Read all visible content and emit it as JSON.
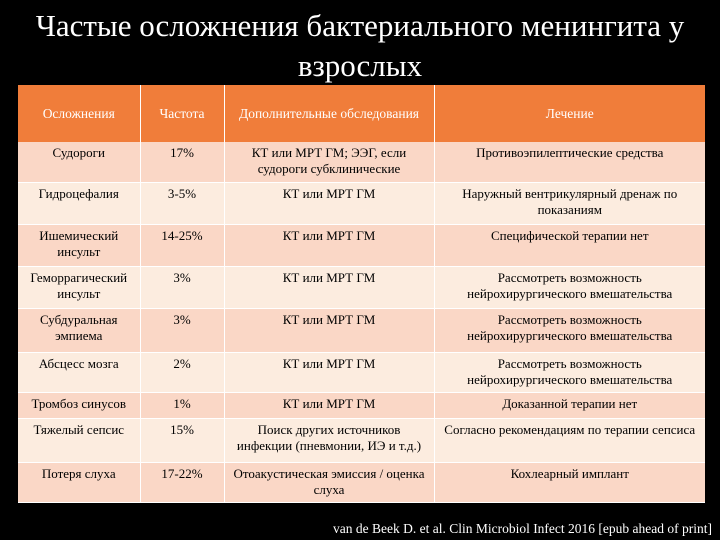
{
  "title": "Частые осложнения бактериального менингита у взрослых",
  "table": {
    "headers": [
      "Осложнения",
      "Частота",
      "Дополнительные обследования",
      "Лечение"
    ],
    "rows": [
      [
        "Судороги",
        "17%",
        "КТ или МРТ ГМ; ЭЭГ, если судороги субклинические",
        "Противоэпилептические средства"
      ],
      [
        "Гидроцефалия",
        "3-5%",
        "КТ или МРТ ГМ",
        "Наружный вентрикулярный дренаж по показаниям"
      ],
      [
        "Ишемический инсульт",
        "14-25%",
        "КТ или МРТ ГМ",
        "Специфической терапии нет"
      ],
      [
        "Геморрагический инсульт",
        "3%",
        "КТ или МРТ ГМ",
        "Рассмотреть возможность нейрохирургического вмешательства"
      ],
      [
        "Субдуральная эмпиема",
        "3%",
        "КТ или МРТ ГМ",
        "Рассмотреть возможность нейрохирургического вмешательства"
      ],
      [
        "Абсцесс мозга",
        "2%",
        "КТ или МРТ ГМ",
        "Рассмотреть возможность нейрохирургического вмешательства"
      ],
      [
        "Тромбоз синусов",
        "1%",
        "КТ или МРТ ГМ",
        "Доказанной терапии нет"
      ],
      [
        "Тяжелый сепсис",
        "15%",
        "Поиск других источников инфекции (пневмонии, ИЭ и т.д.)",
        "Согласно рекомендациям по терапии сепсиса"
      ],
      [
        "Потеря слуха",
        "17-22%",
        "Отоакустическая эмиссия / оценка слуха",
        "Кохлеарный имплант"
      ]
    ]
  },
  "citation": "van de Beek D. et al. Clin Microbiol Infect 2016 [epub ahead of print]",
  "colors": {
    "background": "#000000",
    "header": "#f07d3a",
    "row_odd": "#fad7c6",
    "row_even": "#fcecdf"
  }
}
